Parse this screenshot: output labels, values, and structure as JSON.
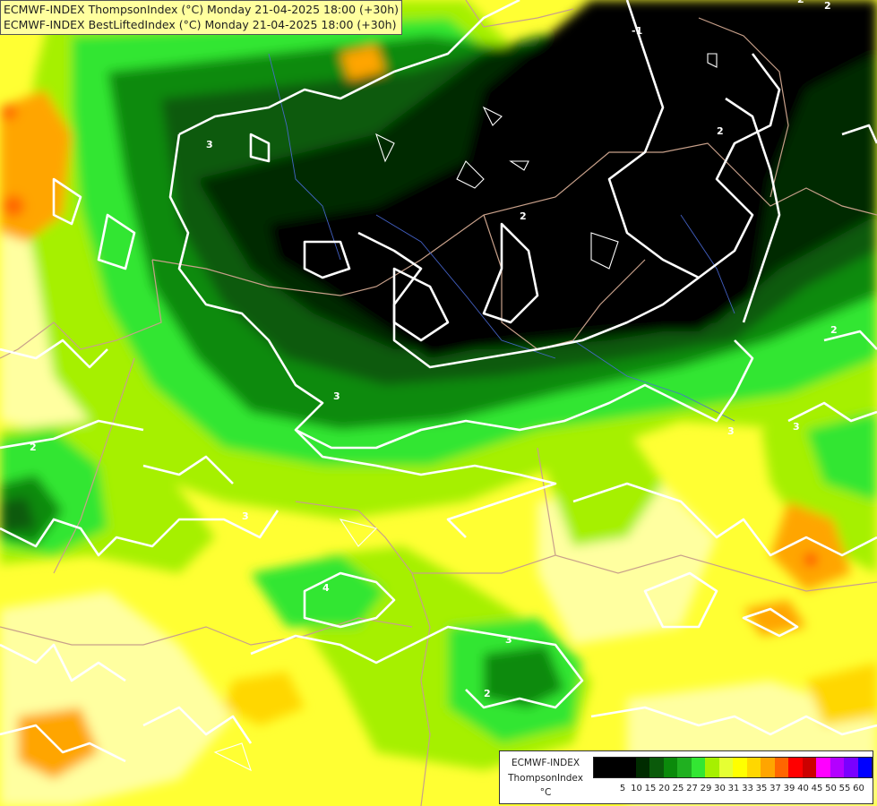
{
  "header": {
    "line1": "ECMWF-INDEX ThompsonIndex (°C) Monday 21-04-2025 18:00 (+30h)",
    "line2": "ECMWF-INDEX BestLiftedIndex (°C) Monday 21-04-2025 18:00 (+30h)"
  },
  "map": {
    "contour_labels": [
      "2",
      "3",
      "3",
      "2",
      "3",
      "2",
      "2",
      "3",
      "4",
      "3",
      "2",
      "2",
      "-1",
      "3",
      "2"
    ]
  },
  "legend": {
    "model": "ECMWF-INDEX",
    "parameter": "ThompsonIndex",
    "unit": "°C",
    "values": [
      "5",
      "10",
      "15",
      "20",
      "25",
      "27",
      "29",
      "30",
      "31",
      "33",
      "35",
      "37",
      "39",
      "40",
      "45",
      "50",
      "55",
      "60"
    ],
    "colors": [
      "#000000",
      "#000000",
      "#000000",
      "#002b00",
      "#0a5a0a",
      "#0b8a0b",
      "#20b020",
      "#33e633",
      "#a6f000",
      "#e6ff33",
      "#ffff00",
      "#ffd700",
      "#ffa500",
      "#ff6600",
      "#ff0000",
      "#cc0000",
      "#ff00ff",
      "#b300ff",
      "#7a00ff",
      "#0000ff"
    ]
  }
}
